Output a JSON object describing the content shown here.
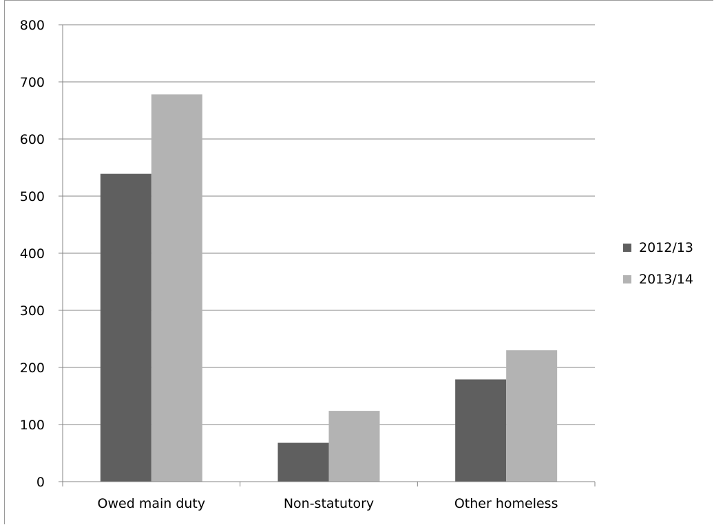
{
  "chart_data": {
    "type": "bar",
    "title": "",
    "xlabel": "",
    "ylabel": "",
    "categories": [
      "Owed main duty",
      "Non-statutory",
      "Other homeless"
    ],
    "series": [
      {
        "name": "2012/13",
        "values": [
          539,
          68,
          179
        ],
        "color": "#5f5f5f"
      },
      {
        "name": "2013/14",
        "values": [
          678,
          124,
          230
        ],
        "color": "#b3b3b3"
      }
    ],
    "ylim": [
      0,
      800
    ],
    "yticks": [
      0,
      100,
      200,
      300,
      400,
      500,
      600,
      700,
      800
    ],
    "grid": true,
    "legend_position": "right"
  }
}
